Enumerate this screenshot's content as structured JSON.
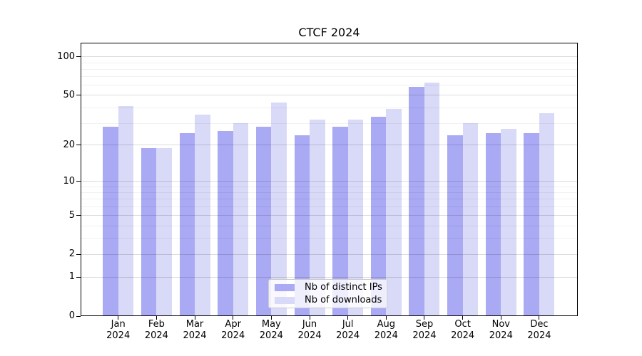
{
  "chart_data": {
    "type": "bar",
    "title": "CTCF 2024",
    "categories": [
      "Jan",
      "Feb",
      "Mar",
      "Apr",
      "May",
      "Jun",
      "Jul",
      "Aug",
      "Sep",
      "Oct",
      "Nov",
      "Dec"
    ],
    "category_year_label": "2024",
    "series": [
      {
        "name": "Nb of distinct IPs",
        "color": "#a9a9f4",
        "values": [
          28,
          19,
          25,
          26,
          28,
          24,
          28,
          34,
          58,
          24,
          25,
          25
        ]
      },
      {
        "name": "Nb of downloads",
        "color": "#d9d9f8",
        "values": [
          41,
          19,
          35,
          30,
          44,
          32,
          32,
          39,
          63,
          30,
          27,
          36
        ]
      }
    ],
    "yscale": "log1p",
    "ylim": [
      0,
      129
    ],
    "y_ticks": [
      0,
      1,
      2,
      5,
      10,
      20,
      50,
      100
    ],
    "y_minor_ticks": [
      3,
      4,
      6,
      7,
      8,
      9,
      30,
      40,
      60,
      70,
      80,
      90
    ],
    "grid": "both",
    "legend_position": "lower center"
  }
}
